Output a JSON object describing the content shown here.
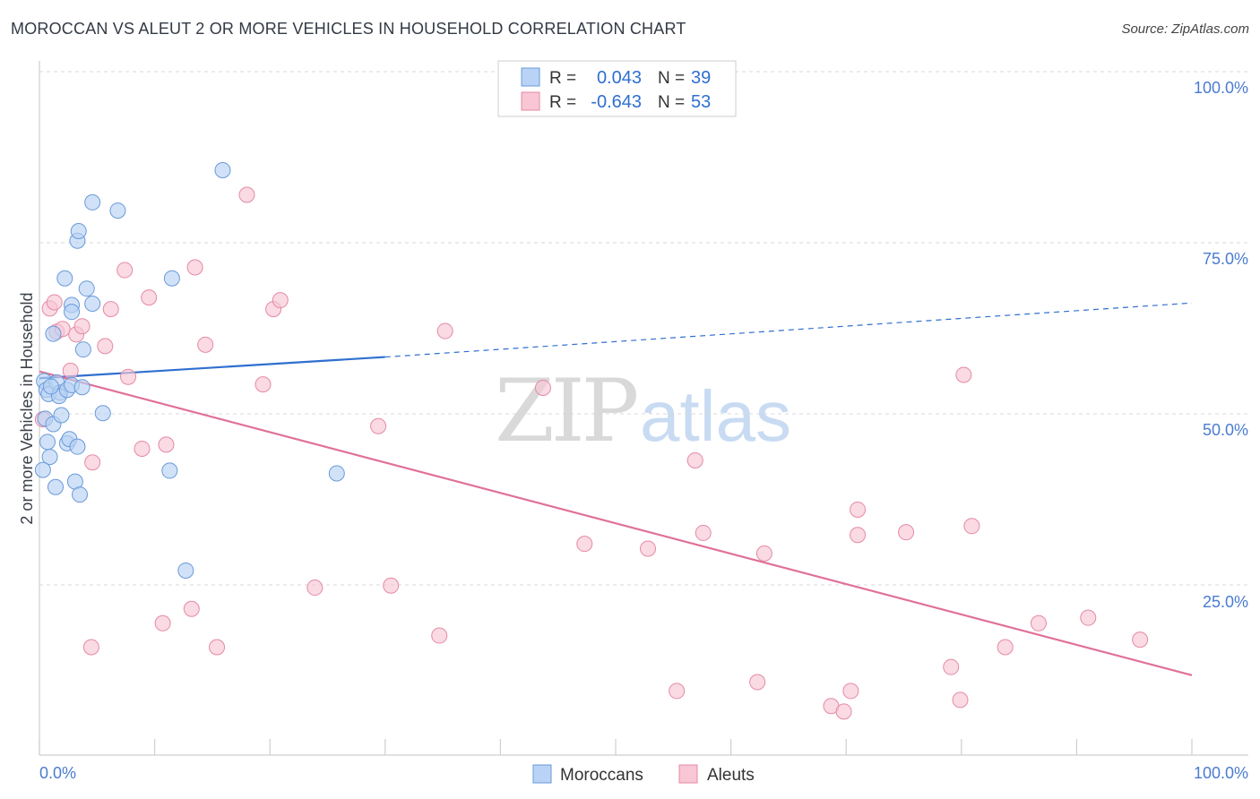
{
  "title": "MOROCCAN VS ALEUT 2 OR MORE VEHICLES IN HOUSEHOLD CORRELATION CHART",
  "source": "Source: ZipAtlas.com",
  "watermark": {
    "zip": "ZIP",
    "atlas": "atlas"
  },
  "colors": {
    "moroccan_fill": "#b8d3f5",
    "moroccan_stroke": "#6a9ad8",
    "moroccan_line": "#2f6fd0",
    "aleut_fill": "#f8c6d4",
    "aleut_stroke": "#e58aa6",
    "aleut_line": "#e0709a",
    "tick_text": "#4a7bd0",
    "grid": "#d8d8d8"
  },
  "legend": {
    "rows": [
      {
        "r_label": "R =",
        "r_value": "0.043",
        "n_label": "N =",
        "n_value": "39"
      },
      {
        "r_label": "R =",
        "r_value": "-0.643",
        "n_label": "N =",
        "n_value": "53"
      }
    ]
  },
  "bottom_legend": {
    "moroccans": "Moroccans",
    "aleuts": "Aleuts"
  },
  "chart_data": {
    "type": "scatter",
    "title": "MOROCCAN VS ALEUT 2 OR MORE VEHICLES IN HOUSEHOLD CORRELATION CHART",
    "xlabel": "",
    "ylabel": "2 or more Vehicles in Household",
    "xlim": [
      0,
      100
    ],
    "ylim": [
      0,
      100
    ],
    "x_tick_labels": [
      "0.0%",
      "100.0%"
    ],
    "y_ticks": [
      25,
      50,
      75,
      100
    ],
    "y_tick_labels": [
      "25.0%",
      "50.0%",
      "75.0%",
      "100.0%"
    ],
    "series": [
      {
        "name": "Moroccans",
        "r": 0.043,
        "n": 39,
        "trend_solid": [
          [
            0,
            55.2
          ],
          [
            30,
            58.3
          ]
        ],
        "trend_dashed": [
          [
            30,
            58.3
          ],
          [
            100,
            66.2
          ]
        ],
        "points": [
          [
            0.4,
            54.8
          ],
          [
            0.6,
            53.5
          ],
          [
            0.8,
            52.9
          ],
          [
            0.5,
            49.3
          ],
          [
            0.7,
            45.9
          ],
          [
            0.9,
            43.7
          ],
          [
            0.3,
            41.8
          ],
          [
            1.2,
            61.7
          ],
          [
            1.5,
            54.6
          ],
          [
            1.8,
            53.1
          ],
          [
            1.7,
            52.6
          ],
          [
            1.2,
            48.5
          ],
          [
            1.9,
            49.8
          ],
          [
            1.4,
            39.3
          ],
          [
            2.2,
            69.8
          ],
          [
            2.4,
            53.5
          ],
          [
            2.4,
            45.7
          ],
          [
            2.6,
            46.3
          ],
          [
            2.8,
            65.9
          ],
          [
            2.8,
            54.2
          ],
          [
            2.8,
            64.9
          ],
          [
            3.1,
            40.1
          ],
          [
            3.3,
            45.2
          ],
          [
            3.3,
            75.3
          ],
          [
            3.4,
            76.7
          ],
          [
            3.5,
            38.2
          ],
          [
            3.7,
            53.9
          ],
          [
            3.8,
            59.4
          ],
          [
            4.1,
            68.3
          ],
          [
            4.6,
            66.1
          ],
          [
            4.6,
            80.9
          ],
          [
            5.5,
            50.1
          ],
          [
            6.8,
            79.7
          ],
          [
            11.3,
            41.7
          ],
          [
            11.5,
            69.8
          ],
          [
            12.7,
            27.1
          ],
          [
            15.9,
            85.6
          ],
          [
            25.8,
            41.3
          ],
          [
            1.0,
            54.0
          ]
        ]
      },
      {
        "name": "Aleuts",
        "r": -0.643,
        "n": 53,
        "trend": [
          [
            0,
            56.2
          ],
          [
            100,
            11.8
          ]
        ],
        "points": [
          [
            0.3,
            49.2
          ],
          [
            0.9,
            65.4
          ],
          [
            1.3,
            66.3
          ],
          [
            1.5,
            62.0
          ],
          [
            2.0,
            62.4
          ],
          [
            2.7,
            56.3
          ],
          [
            3.2,
            61.6
          ],
          [
            3.7,
            62.8
          ],
          [
            4.6,
            42.9
          ],
          [
            4.5,
            15.9
          ],
          [
            5.7,
            59.9
          ],
          [
            6.2,
            65.3
          ],
          [
            7.4,
            71.0
          ],
          [
            7.7,
            55.4
          ],
          [
            8.9,
            44.9
          ],
          [
            9.5,
            67.0
          ],
          [
            10.7,
            19.4
          ],
          [
            11.0,
            45.5
          ],
          [
            13.2,
            21.5
          ],
          [
            13.5,
            71.4
          ],
          [
            14.4,
            60.1
          ],
          [
            15.4,
            15.9
          ],
          [
            18.0,
            82.0
          ],
          [
            19.4,
            54.3
          ],
          [
            20.3,
            65.3
          ],
          [
            20.9,
            66.6
          ],
          [
            23.9,
            24.6
          ],
          [
            29.4,
            48.2
          ],
          [
            30.5,
            24.9
          ],
          [
            34.7,
            17.6
          ],
          [
            35.2,
            62.1
          ],
          [
            43.7,
            53.8
          ],
          [
            47.3,
            31.0
          ],
          [
            52.8,
            30.3
          ],
          [
            55.3,
            9.5
          ],
          [
            56.9,
            43.2
          ],
          [
            57.6,
            32.6
          ],
          [
            62.3,
            10.8
          ],
          [
            62.9,
            29.6
          ],
          [
            68.7,
            7.3
          ],
          [
            69.8,
            6.5
          ],
          [
            70.4,
            9.5
          ],
          [
            71.0,
            36.0
          ],
          [
            71.0,
            32.3
          ],
          [
            75.2,
            32.7
          ],
          [
            79.1,
            13.0
          ],
          [
            79.9,
            8.2
          ],
          [
            80.2,
            55.7
          ],
          [
            80.9,
            33.6
          ],
          [
            83.8,
            15.9
          ],
          [
            86.7,
            19.4
          ],
          [
            91.0,
            20.2
          ],
          [
            95.5,
            17.0
          ]
        ]
      }
    ]
  }
}
